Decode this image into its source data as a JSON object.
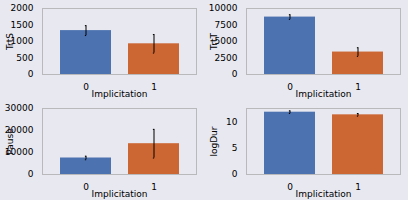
{
  "chart_data": [
    {
      "type": "bar",
      "categories": [
        "0",
        "1"
      ],
      "values": [
        1330,
        930
      ],
      "errors": [
        150,
        280
      ],
      "xlabel": "Implicitation",
      "ylabel": "TrtS",
      "colors": [
        "#4C72B0",
        "#CC6633"
      ],
      "ylim": [
        0,
        2000
      ],
      "yticks": [
        0,
        500,
        1000,
        1500,
        2000
      ],
      "grid": false
    },
    {
      "type": "bar",
      "categories": [
        "0",
        "1"
      ],
      "values": [
        8700,
        3400
      ],
      "errors": [
        350,
        650
      ],
      "xlabel": "Implicitation",
      "ylabel": "TrtT",
      "colors": [
        "#4C72B0",
        "#CC6633"
      ],
      "ylim": [
        0,
        10000
      ],
      "yticks": [
        0,
        2500,
        5000,
        7500,
        10000
      ],
      "grid": false
    },
    {
      "type": "bar",
      "categories": [
        "0",
        "1"
      ],
      "values": [
        7500,
        14000
      ],
      "errors": [
        800,
        6500
      ],
      "xlabel": "Implicitation",
      "ylabel": "Pause",
      "colors": [
        "#4C72B0",
        "#CC6633"
      ],
      "ylim": [
        0,
        30000
      ],
      "yticks": [
        0,
        10000,
        20000,
        30000
      ],
      "grid": false
    },
    {
      "type": "bar",
      "categories": [
        "0",
        "1"
      ],
      "values": [
        11.8,
        11.3
      ],
      "errors": [
        0.25,
        0.25
      ],
      "xlabel": "Implicitation",
      "ylabel": "logDur",
      "colors": [
        "#4C72B0",
        "#CC6633"
      ],
      "ylim": [
        0,
        12.5
      ],
      "yticks": [
        0,
        5,
        10
      ],
      "grid": false
    }
  ]
}
